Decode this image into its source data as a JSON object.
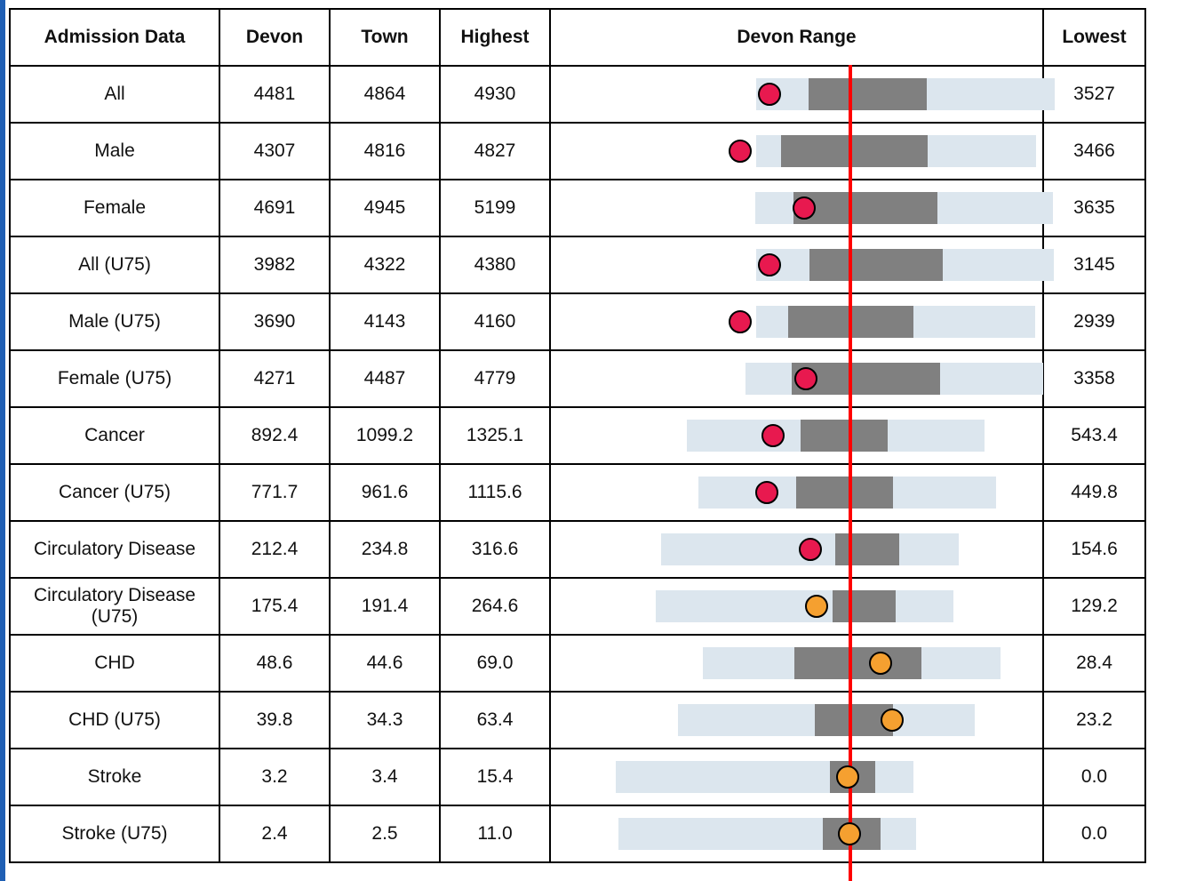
{
  "headers": [
    "Admission Data",
    "Devon",
    "Town",
    "Highest",
    "Devon Range",
    "Lowest"
  ],
  "rows": [
    {
      "label": "All",
      "devon": "4481",
      "town": "4864",
      "highest": "4930",
      "lowest": "3527"
    },
    {
      "label": "Male",
      "devon": "4307",
      "town": "4816",
      "highest": "4827",
      "lowest": "3466"
    },
    {
      "label": "Female",
      "devon": "4691",
      "town": "4945",
      "highest": "5199",
      "lowest": "3635"
    },
    {
      "label": "All (U75)",
      "devon": "3982",
      "town": "4322",
      "highest": "4380",
      "lowest": "3145"
    },
    {
      "label": "Male (U75)",
      "devon": "3690",
      "town": "4143",
      "highest": "4160",
      "lowest": "2939"
    },
    {
      "label": "Female (U75)",
      "devon": "4271",
      "town": "4487",
      "highest": "4779",
      "lowest": "3358"
    },
    {
      "label": "Cancer",
      "devon": "892.4",
      "town": "1099.2",
      "highest": "1325.1",
      "lowest": "543.4"
    },
    {
      "label": "Cancer (U75)",
      "devon": "771.7",
      "town": "961.6",
      "highest": "1115.6",
      "lowest": "449.8"
    },
    {
      "label": "Circulatory Disease",
      "devon": "212.4",
      "town": "234.8",
      "highest": "316.6",
      "lowest": "154.6"
    },
    {
      "label": "Circulatory Disease (U75)",
      "devon": "175.4",
      "town": "191.4",
      "highest": "264.6",
      "lowest": "129.2"
    },
    {
      "label": "CHD",
      "devon": "48.6",
      "town": "44.6",
      "highest": "69.0",
      "lowest": "28.4"
    },
    {
      "label": "CHD (U75)",
      "devon": "39.8",
      "town": "34.3",
      "highest": "63.4",
      "lowest": "23.2"
    },
    {
      "label": "Stroke",
      "devon": "3.2",
      "town": "3.4",
      "highest": "15.4",
      "lowest": "0.0"
    },
    {
      "label": "Stroke (U75)",
      "devon": "2.4",
      "town": "2.5",
      "highest": "11.0",
      "lowest": "0.0"
    }
  ],
  "chart_data": {
    "type": "table",
    "title": "",
    "colors": {
      "range_outer": "#dce6ee",
      "range_inner": "#808080",
      "reference_line": "#ff0000",
      "marker_significantly_worse": "#e8194f",
      "marker_not_significant": "#f5a030"
    },
    "markers": [
      {
        "row": "All",
        "devon": 4481,
        "status": "significantly_worse"
      },
      {
        "row": "Male",
        "devon": 4307,
        "status": "significantly_worse"
      },
      {
        "row": "Female",
        "devon": 4691,
        "status": "significantly_worse"
      },
      {
        "row": "All (U75)",
        "devon": 3982,
        "status": "significantly_worse"
      },
      {
        "row": "Male (U75)",
        "devon": 3690,
        "status": "significantly_worse"
      },
      {
        "row": "Female (U75)",
        "devon": 4271,
        "status": "significantly_worse"
      },
      {
        "row": "Cancer",
        "devon": 892.4,
        "status": "significantly_worse"
      },
      {
        "row": "Cancer (U75)",
        "devon": 771.7,
        "status": "significantly_worse"
      },
      {
        "row": "Circulatory Disease",
        "devon": 212.4,
        "status": "significantly_worse"
      },
      {
        "row": "Circulatory Disease (U75)",
        "devon": 175.4,
        "status": "not_significant"
      },
      {
        "row": "CHD",
        "devon": 48.6,
        "status": "not_significant"
      },
      {
        "row": "CHD (U75)",
        "devon": 39.8,
        "status": "not_significant"
      },
      {
        "row": "Stroke",
        "devon": 3.2,
        "status": "not_significant"
      },
      {
        "row": "Stroke (U75)",
        "devon": 2.4,
        "status": "not_significant"
      }
    ]
  }
}
